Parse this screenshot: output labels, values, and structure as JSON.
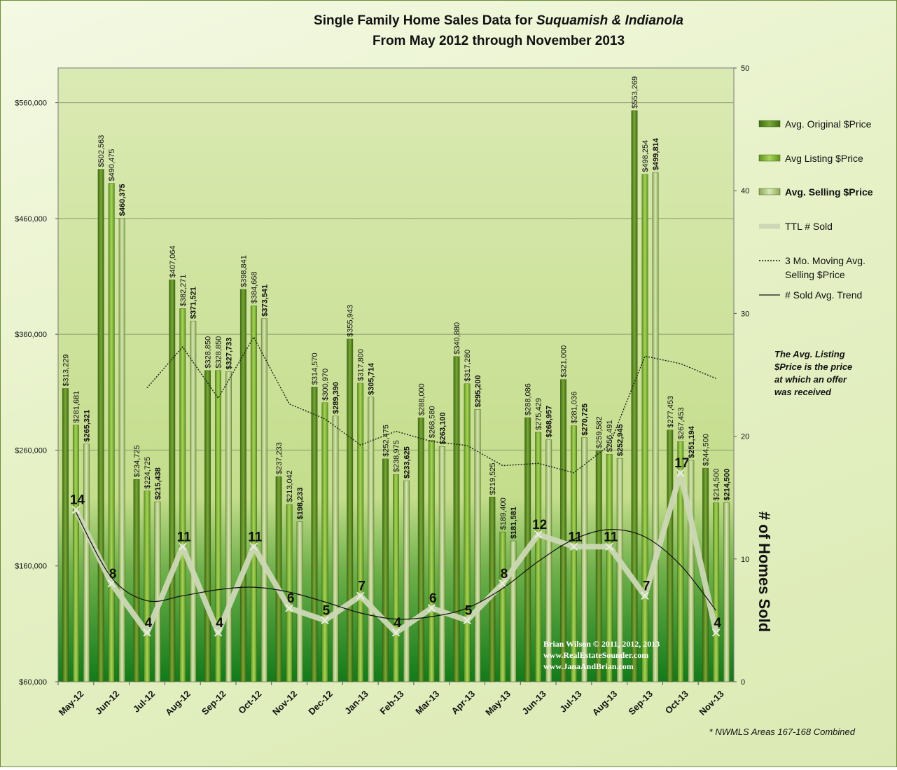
{
  "chart_data": {
    "type": "bar",
    "title_line1_prefix": "Single Family Home Sales Data for ",
    "title_line1_italic": "Suquamish & Indianola",
    "title_line2": "From May 2012 through November 2013",
    "categories": [
      "May-12",
      "Jun-12",
      "Jul-12",
      "Aug-12",
      "Sep-12",
      "Oct-12",
      "Nov-12",
      "Dec-12",
      "Jan-13",
      "Feb-13",
      "Mar-13",
      "Apr-13",
      "May-13",
      "Jun-13",
      "Jul-13",
      "Aug-13",
      "Sep-13",
      "Oct-13",
      "Nov-13"
    ],
    "y_axis": {
      "min": 60000,
      "max": 590000,
      "ticks": [
        60000,
        160000,
        260000,
        360000,
        460000,
        560000
      ],
      "tick_labels": [
        "$60,000",
        "$160,000",
        "$260,000",
        "$360,000",
        "$460,000",
        "$560,000"
      ]
    },
    "y2_axis": {
      "label": "# of Homes Sold",
      "min": 0,
      "max": 50,
      "ticks": [
        0,
        10,
        20,
        30,
        40,
        50
      ]
    },
    "series": [
      {
        "name": "Avg. Original $Price",
        "kind": "bar",
        "color": "#5e8a1e",
        "values": [
          313229,
          502563,
          234725,
          407064,
          328850,
          398841,
          237233,
          314570,
          355943,
          252475,
          288000,
          340880,
          219525,
          288086,
          321000,
          259582,
          553269,
          277453,
          244500
        ],
        "labels": [
          "$313,229",
          "$502,563",
          "$234,725",
          "$407,064",
          "$328,850",
          "$398,841",
          "$237,233",
          "$314,570",
          "$355,943",
          "$252,475",
          "$288,000",
          "$340,880",
          "$219,525",
          "$288,086",
          "$321,000",
          "$259,582",
          "$553,269",
          "$277,453",
          "$244,500"
        ]
      },
      {
        "name": "Avg Listing $Price",
        "kind": "bar",
        "color": "#8cbe34",
        "values": [
          281681,
          490475,
          224725,
          382271,
          328850,
          384668,
          213042,
          300970,
          317800,
          238975,
          268580,
          317280,
          189400,
          275429,
          281036,
          256491,
          498254,
          267453,
          214500
        ],
        "labels": [
          "$281,681",
          "$490,475",
          "$224,725",
          "$382,271",
          "$328,850",
          "$384,668",
          "$213,042",
          "$300,970",
          "$317,800",
          "$238,975",
          "$268,580",
          "$317,280",
          "$189,400",
          "$275,429",
          "$281,036",
          "$256,491",
          "$498,254",
          "$267,453",
          "$214,500"
        ]
      },
      {
        "name": "Avg. Selling $Price",
        "kind": "bar",
        "color": "#b9d285",
        "values": [
          265321,
          460375,
          215438,
          371521,
          327733,
          373541,
          198233,
          289390,
          305714,
          233625,
          263100,
          295200,
          181581,
          268957,
          270725,
          252945,
          499814,
          251194,
          214500
        ],
        "labels": [
          "$265,321",
          "$460,375",
          "$215,438",
          "$371,521",
          "$327,733",
          "$373,541",
          "$198,233",
          "$289,390",
          "$305,714",
          "$233,625",
          "$263,100",
          "$295,200",
          "$181,581",
          "$268,957",
          "$270,725",
          "$252,945",
          "$499,814",
          "$251,194",
          "$214,500"
        ]
      },
      {
        "name": "TTL # Sold",
        "kind": "line",
        "axis": "y2",
        "color": "#cfdcb8",
        "values": [
          14,
          8,
          4,
          11,
          4,
          11,
          6,
          5,
          7,
          4,
          6,
          5,
          8,
          12,
          11,
          11,
          7,
          17,
          4
        ]
      },
      {
        "name": "3 Mo. Moving Avg. Selling $Price",
        "kind": "dotted-line",
        "color": "#222222",
        "values": [
          null,
          null,
          313711,
          349111,
          304897,
          357598,
          299829,
          287005,
          264446,
          276243,
          267480,
          263975,
          246627,
          248579,
          240421,
          264209,
          341161,
          334651,
          321836
        ]
      },
      {
        "name": "# Sold Avg. Trend",
        "kind": "trend-line",
        "axis": "y2",
        "color": "#111111",
        "values": [
          13.8,
          8.5,
          6.6,
          7.0,
          7.5,
          7.7,
          7.3,
          6.5,
          5.6,
          5.1,
          5.3,
          6.0,
          7.6,
          9.8,
          11.6,
          12.4,
          11.8,
          9.5,
          5.8
        ]
      }
    ],
    "legend": {
      "position": "right",
      "labels": [
        "Avg. Original $Price",
        "Avg Listing $Price",
        "Avg. Selling $Price",
        "TTL # Sold",
        "3 Mo. Moving Avg.",
        "Selling $Price",
        "# Sold Avg. Trend"
      ]
    },
    "note_lines": [
      "The Avg. Listing",
      "$Price is the price",
      "at which an offer",
      "was received"
    ],
    "credit_lines": [
      "Brian Wilson  © 2011, 2012, 2013",
      "www.RealEstateSounder.com",
      "www.JanaAndBrian.com"
    ],
    "footnote": "* NWMLS Areas 167-168 Combined",
    "grid": true
  }
}
